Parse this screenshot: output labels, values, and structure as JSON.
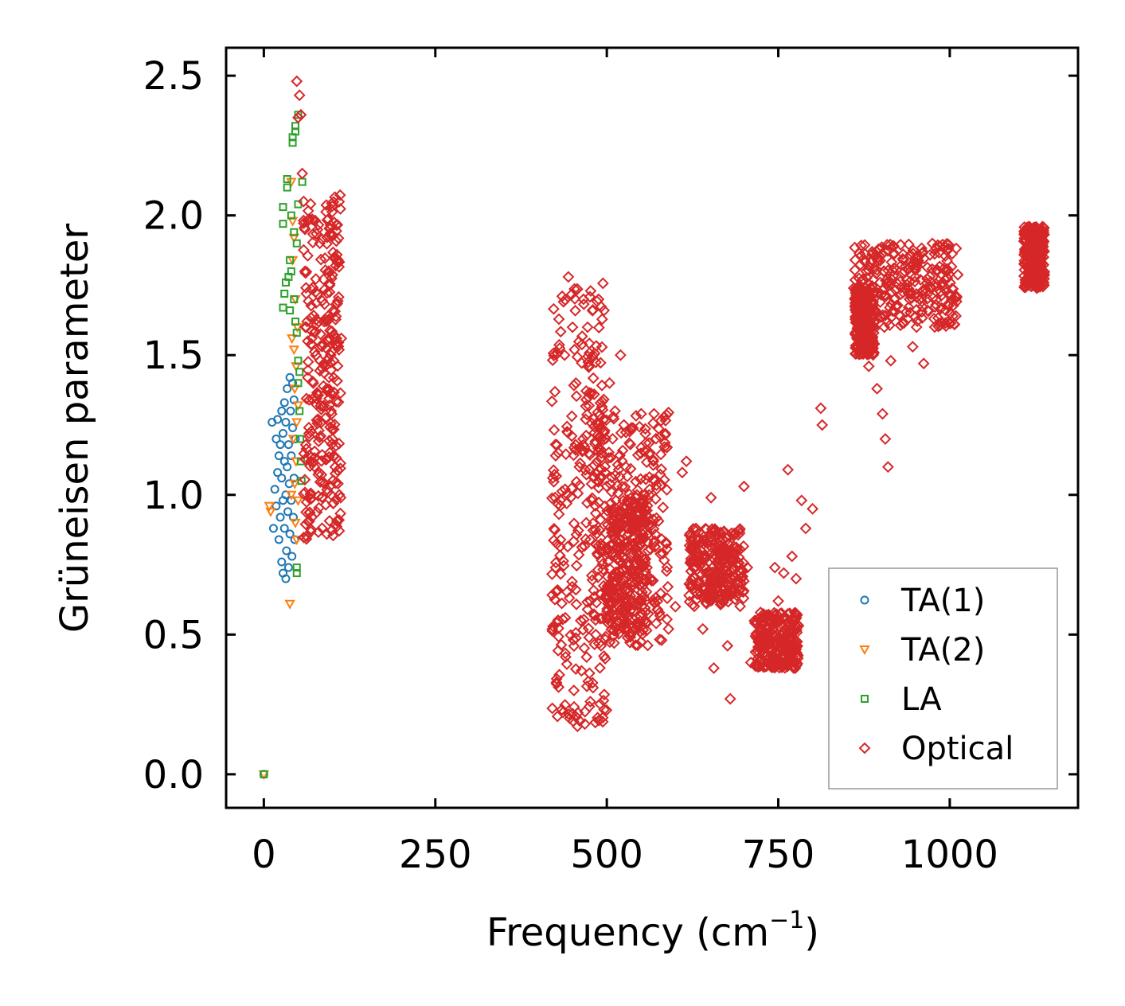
{
  "chart_data": {
    "type": "scatter",
    "title": "",
    "xlabel": "Frequency (cm",
    "xlabel_sup": "−1",
    "xlabel_suffix": ")",
    "ylabel": "Grüneisen parameter",
    "xlim": [
      -55,
      1187
    ],
    "ylim": [
      -0.12,
      2.6
    ],
    "xticks": [
      0,
      250,
      500,
      750,
      1000
    ],
    "xtick_labels": [
      "0",
      "250",
      "500",
      "750",
      "1000"
    ],
    "yticks": [
      0.0,
      0.5,
      1.0,
      1.5,
      2.0,
      2.5
    ],
    "ytick_labels": [
      "0.0",
      "0.5",
      "1.0",
      "1.5",
      "2.0",
      "2.5"
    ],
    "legend_position": "lower-right",
    "series": [
      {
        "name": "TA(1)",
        "color": "#1f77b4",
        "marker": "circle",
        "points": [
          [
            0,
            0.0
          ],
          [
            12,
            1.26
          ],
          [
            14,
            0.88
          ],
          [
            16,
            1.02
          ],
          [
            18,
            1.2
          ],
          [
            18,
            0.96
          ],
          [
            20,
            1.08
          ],
          [
            20,
            1.27
          ],
          [
            22,
            0.84
          ],
          [
            22,
            1.14
          ],
          [
            24,
            0.92
          ],
          [
            24,
            1.18
          ],
          [
            26,
            0.76
          ],
          [
            26,
            1.06
          ],
          [
            26,
            1.3
          ],
          [
            28,
            0.98
          ],
          [
            28,
            1.22
          ],
          [
            28,
            0.72
          ],
          [
            30,
            0.88
          ],
          [
            30,
            1.12
          ],
          [
            30,
            1.33
          ],
          [
            32,
            0.7
          ],
          [
            32,
            1.0
          ],
          [
            32,
            1.26
          ],
          [
            33,
            0.8
          ],
          [
            34,
            1.1
          ],
          [
            34,
            1.38
          ],
          [
            35,
            0.94
          ],
          [
            36,
            0.74
          ],
          [
            36,
            1.18
          ],
          [
            37,
            1.04
          ],
          [
            38,
            1.42
          ],
          [
            38,
            0.86
          ],
          [
            39,
            1.3
          ],
          [
            40,
            0.98
          ],
          [
            40,
            1.14
          ],
          [
            41,
            0.78
          ],
          [
            42,
            1.24
          ],
          [
            42,
            1.4
          ],
          [
            43,
            0.92
          ],
          [
            44,
            1.06
          ],
          [
            44,
            1.34
          ],
          [
            45,
            0.84
          ],
          [
            46,
            1.2
          ]
        ]
      },
      {
        "name": "TA(2)",
        "color": "#ff7f0e",
        "marker": "triangle-down",
        "points": [
          [
            0,
            0.0
          ],
          [
            8,
            0.96
          ],
          [
            10,
            0.94
          ],
          [
            38,
            0.61
          ],
          [
            40,
            1.0
          ],
          [
            40,
            2.12
          ],
          [
            41,
            1.56
          ],
          [
            42,
            1.98
          ],
          [
            42,
            1.84
          ],
          [
            43,
            1.2
          ],
          [
            44,
            1.92
          ],
          [
            44,
            1.52
          ],
          [
            45,
            1.38
          ],
          [
            45,
            1.04
          ],
          [
            46,
            1.7
          ],
          [
            46,
            0.9
          ],
          [
            47,
            1.46
          ],
          [
            47,
            1.12
          ],
          [
            48,
            1.26
          ],
          [
            48,
            0.84
          ],
          [
            49,
            1.6
          ],
          [
            50,
            1.32
          ],
          [
            50,
            0.98
          ]
        ]
      },
      {
        "name": "LA",
        "color": "#2ca02c",
        "marker": "square",
        "points": [
          [
            0,
            0.0
          ],
          [
            28,
            1.97
          ],
          [
            28,
            2.03
          ],
          [
            28,
            1.67
          ],
          [
            30,
            1.72
          ],
          [
            32,
            1.76
          ],
          [
            34,
            2.13
          ],
          [
            34,
            2.1
          ],
          [
            36,
            1.78
          ],
          [
            38,
            1.84
          ],
          [
            38,
            1.66
          ],
          [
            40,
            1.8
          ],
          [
            40,
            2.0
          ],
          [
            42,
            2.28
          ],
          [
            42,
            2.26
          ],
          [
            44,
            1.94
          ],
          [
            44,
            1.7
          ],
          [
            46,
            2.32
          ],
          [
            46,
            2.3
          ],
          [
            46,
            1.62
          ],
          [
            48,
            1.9
          ],
          [
            48,
            1.58
          ],
          [
            48,
            0.74
          ],
          [
            48,
            0.72
          ],
          [
            50,
            2.36
          ],
          [
            50,
            2.04
          ],
          [
            50,
            1.48
          ],
          [
            50,
            1.4
          ],
          [
            52,
            1.44
          ],
          [
            52,
            1.3
          ],
          [
            53,
            1.2
          ],
          [
            54,
            1.12
          ],
          [
            55,
            1.05
          ],
          [
            56,
            2.12
          ]
        ]
      },
      {
        "name": "Optical",
        "color": "#d62728",
        "marker": "diamond",
        "points": [
          [
            48,
            2.48
          ],
          [
            50,
            2.35
          ],
          [
            52,
            2.43
          ],
          [
            54,
            2.36
          ],
          [
            56,
            2.15
          ],
          [
            58,
            2.05
          ],
          [
            60,
            1.95
          ],
          [
            60,
            1.8
          ],
          [
            62,
            1.72
          ],
          [
            62,
            1.6
          ],
          [
            64,
            1.55
          ],
          [
            64,
            1.42
          ],
          [
            66,
            1.34
          ],
          [
            66,
            1.22
          ],
          [
            68,
            1.12
          ],
          [
            68,
            1.0
          ],
          [
            70,
            0.92
          ],
          [
            72,
            1.4
          ],
          [
            74,
            1.58
          ],
          [
            76,
            1.5
          ],
          [
            78,
            1.36
          ],
          [
            80,
            1.62
          ],
          [
            82,
            1.48
          ],
          [
            84,
            1.26
          ],
          [
            86,
            1.54
          ],
          [
            88,
            1.62
          ],
          [
            90,
            1.46
          ],
          [
            92,
            1.38
          ],
          [
            94,
            1.64
          ],
          [
            96,
            1.56
          ],
          [
            98,
            1.3
          ],
          [
            100,
            1.2
          ],
          [
            102,
            1.48
          ],
          [
            104,
            1.1
          ],
          [
            106,
            1.56
          ],
          [
            108,
            1.04
          ],
          [
            110,
            1.0
          ],
          [
            112,
            0.99
          ],
          [
            113,
            1.56
          ],
          [
            440,
            0.42
          ],
          [
            444,
            1.78
          ],
          [
            446,
            0.2
          ],
          [
            450,
            1.6
          ],
          [
            452,
            0.3
          ],
          [
            455,
            1.4
          ],
          [
            458,
            0.22
          ],
          [
            460,
            1.1
          ],
          [
            462,
            0.55
          ],
          [
            466,
            1.7
          ],
          [
            468,
            0.18
          ],
          [
            470,
            0.9
          ],
          [
            472,
            1.6
          ],
          [
            476,
            0.26
          ],
          [
            480,
            1.5
          ],
          [
            484,
            0.5
          ],
          [
            488,
            1.7
          ],
          [
            490,
            0.8
          ],
          [
            492,
            1.2
          ],
          [
            496,
            1.66
          ],
          [
            500,
            0.56
          ],
          [
            504,
            1.4
          ],
          [
            508,
            0.9
          ],
          [
            512,
            1.3
          ],
          [
            516,
            0.7
          ],
          [
            520,
            1.5
          ],
          [
            524,
            0.62
          ],
          [
            528,
            1.1
          ],
          [
            532,
            0.86
          ],
          [
            536,
            1.24
          ],
          [
            540,
            0.64
          ],
          [
            544,
            1.0
          ],
          [
            548,
            0.76
          ],
          [
            552,
            0.92
          ],
          [
            556,
            0.58
          ],
          [
            560,
            0.8
          ],
          [
            564,
            0.7
          ],
          [
            568,
            1.12
          ],
          [
            572,
            0.54
          ],
          [
            580,
            0.48
          ],
          [
            590,
            0.52
          ],
          [
            600,
            0.6
          ],
          [
            610,
            1.08
          ],
          [
            616,
            1.12
          ],
          [
            620,
            0.64
          ],
          [
            625,
            0.82
          ],
          [
            630,
            0.88
          ],
          [
            640,
            0.52
          ],
          [
            646,
            0.65
          ],
          [
            652,
            0.99
          ],
          [
            656,
            0.38
          ],
          [
            660,
            0.8
          ],
          [
            666,
            0.7
          ],
          [
            670,
            0.84
          ],
          [
            676,
            0.46
          ],
          [
            680,
            0.27
          ],
          [
            690,
            0.68
          ],
          [
            700,
            1.03
          ],
          [
            705,
            0.74
          ],
          [
            710,
            0.4
          ],
          [
            720,
            0.44
          ],
          [
            730,
            0.5
          ],
          [
            740,
            0.56
          ],
          [
            745,
            0.74
          ],
          [
            750,
            0.62
          ],
          [
            758,
            0.72
          ],
          [
            764,
            1.09
          ],
          [
            770,
            0.78
          ],
          [
            776,
            0.7
          ],
          [
            784,
            0.98
          ],
          [
            790,
            0.88
          ],
          [
            800,
            0.95
          ],
          [
            812,
            1.31
          ],
          [
            814,
            1.25
          ],
          [
            860,
            1.74
          ],
          [
            866,
            1.6
          ],
          [
            872,
            1.52
          ],
          [
            878,
            1.8
          ],
          [
            882,
            1.46
          ],
          [
            886,
            1.84
          ],
          [
            890,
            1.54
          ],
          [
            894,
            1.38
          ],
          [
            898,
            1.88
          ],
          [
            902,
            1.29
          ],
          [
            906,
            1.2
          ],
          [
            910,
            1.1
          ],
          [
            914,
            1.48
          ],
          [
            918,
            1.86
          ],
          [
            922,
            1.76
          ],
          [
            928,
            1.64
          ],
          [
            934,
            1.8
          ],
          [
            940,
            1.72
          ],
          [
            946,
            1.53
          ],
          [
            950,
            1.78
          ],
          [
            956,
            1.7
          ],
          [
            962,
            1.47
          ],
          [
            968,
            1.66
          ],
          [
            974,
            1.74
          ],
          [
            980,
            1.68
          ],
          [
            990,
            1.76
          ],
          [
            1000,
            1.72
          ],
          [
            1010,
            1.71
          ],
          [
            1110,
            1.75
          ],
          [
            1118,
            1.82
          ],
          [
            1124,
            1.9
          ],
          [
            1128,
            1.95
          ],
          [
            1132,
            1.86
          ],
          [
            1136,
            1.78
          ]
        ],
        "clusters": [
          {
            "x": [
              58,
              112
            ],
            "y": [
              0.84,
              2.08
            ]
          },
          {
            "x": [
              420,
              500
            ],
            "y": [
              0.17,
              1.76
            ]
          },
          {
            "x": [
              480,
              590
            ],
            "y": [
              0.46,
              1.3
            ]
          },
          {
            "x": [
              500,
              560
            ],
            "y": [
              0.5,
              1.0
            ]
          },
          {
            "x": [
              620,
              700
            ],
            "y": [
              0.6,
              0.88
            ]
          },
          {
            "x": [
              715,
              780
            ],
            "y": [
              0.38,
              0.58
            ]
          },
          {
            "x": [
              860,
              1012
            ],
            "y": [
              1.6,
              1.9
            ]
          },
          {
            "x": [
              862,
              890
            ],
            "y": [
              1.5,
              1.74
            ]
          },
          {
            "x": [
              1108,
              1138
            ],
            "y": [
              1.74,
              1.96
            ]
          }
        ]
      }
    ]
  }
}
